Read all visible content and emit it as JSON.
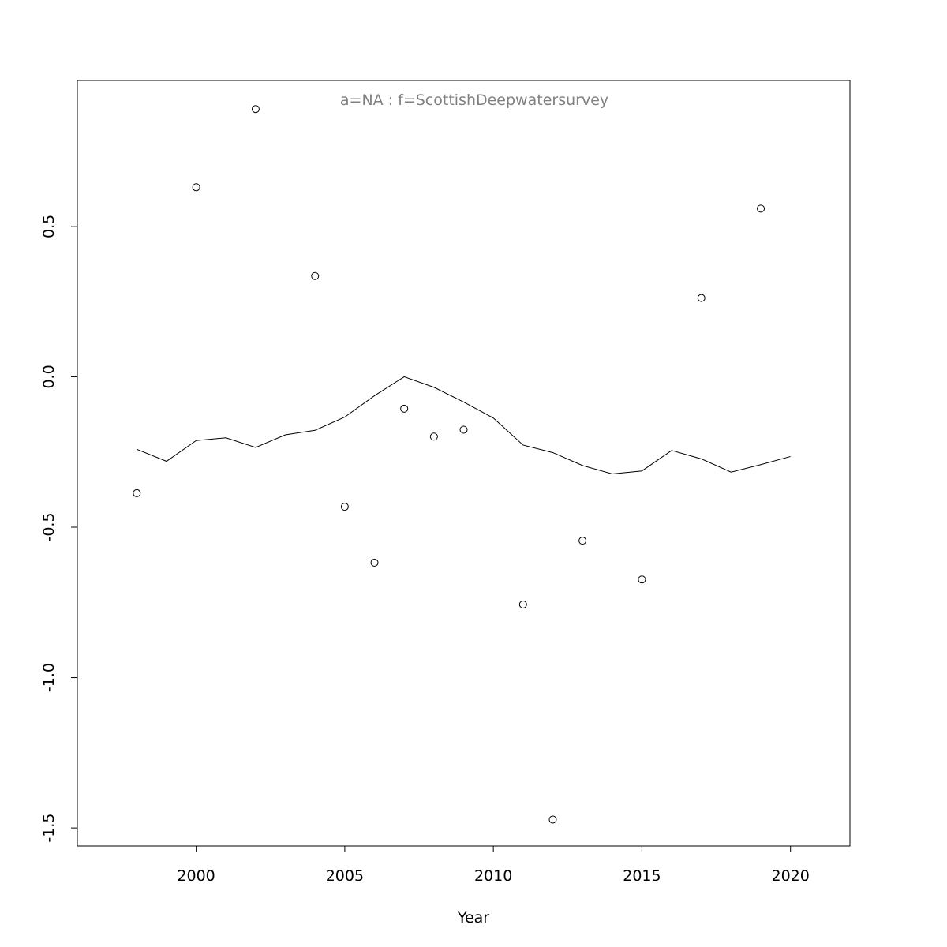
{
  "chart_data": {
    "type": "scatter",
    "title": "a=NA  :  f=ScottishDeepwatersurvey",
    "xlabel": "Year",
    "ylabel": "",
    "xlim": [
      1996,
      2022
    ],
    "ylim": [
      -1.56,
      0.985
    ],
    "x_ticks": [
      2000,
      2005,
      2010,
      2015,
      2020
    ],
    "y_ticks": [
      -1.5,
      -1.0,
      -0.5,
      0.0,
      0.5
    ],
    "x_tick_labels": [
      "2000",
      "2005",
      "2010",
      "2015",
      "2020"
    ],
    "y_tick_labels": [
      "-1.5",
      "-1.0",
      "-0.5",
      "0.0",
      "0.5"
    ],
    "grid": false,
    "series": [
      {
        "kind": "points",
        "marker": "open-circle",
        "x": [
          1998,
          2000,
          2002,
          2004,
          2005,
          2006,
          2007,
          2008,
          2009,
          2011,
          2012,
          2013,
          2015,
          2017,
          2019
        ],
        "y": [
          -0.387,
          0.63,
          0.89,
          0.335,
          -0.432,
          -0.618,
          -0.106,
          -0.199,
          -0.176,
          -0.757,
          -1.472,
          -0.545,
          -0.674,
          0.262,
          0.559
        ]
      },
      {
        "kind": "line",
        "x": [
          1998,
          1999,
          2000,
          2001,
          2002,
          2003,
          2004,
          2005,
          2006,
          2007,
          2008,
          2009,
          2010,
          2011,
          2012,
          2013,
          2014,
          2015,
          2016,
          2017,
          2018,
          2019,
          2020
        ],
        "y": [
          -0.241,
          -0.281,
          -0.212,
          -0.203,
          -0.235,
          -0.193,
          -0.178,
          -0.134,
          -0.063,
          0.0,
          -0.035,
          -0.084,
          -0.137,
          -0.227,
          -0.252,
          -0.295,
          -0.323,
          -0.313,
          -0.245,
          -0.273,
          -0.317,
          -0.292,
          -0.265
        ]
      }
    ],
    "colors": {
      "axis": "#000000",
      "title": "#808080",
      "line": "#000000",
      "points": "#000000"
    }
  }
}
